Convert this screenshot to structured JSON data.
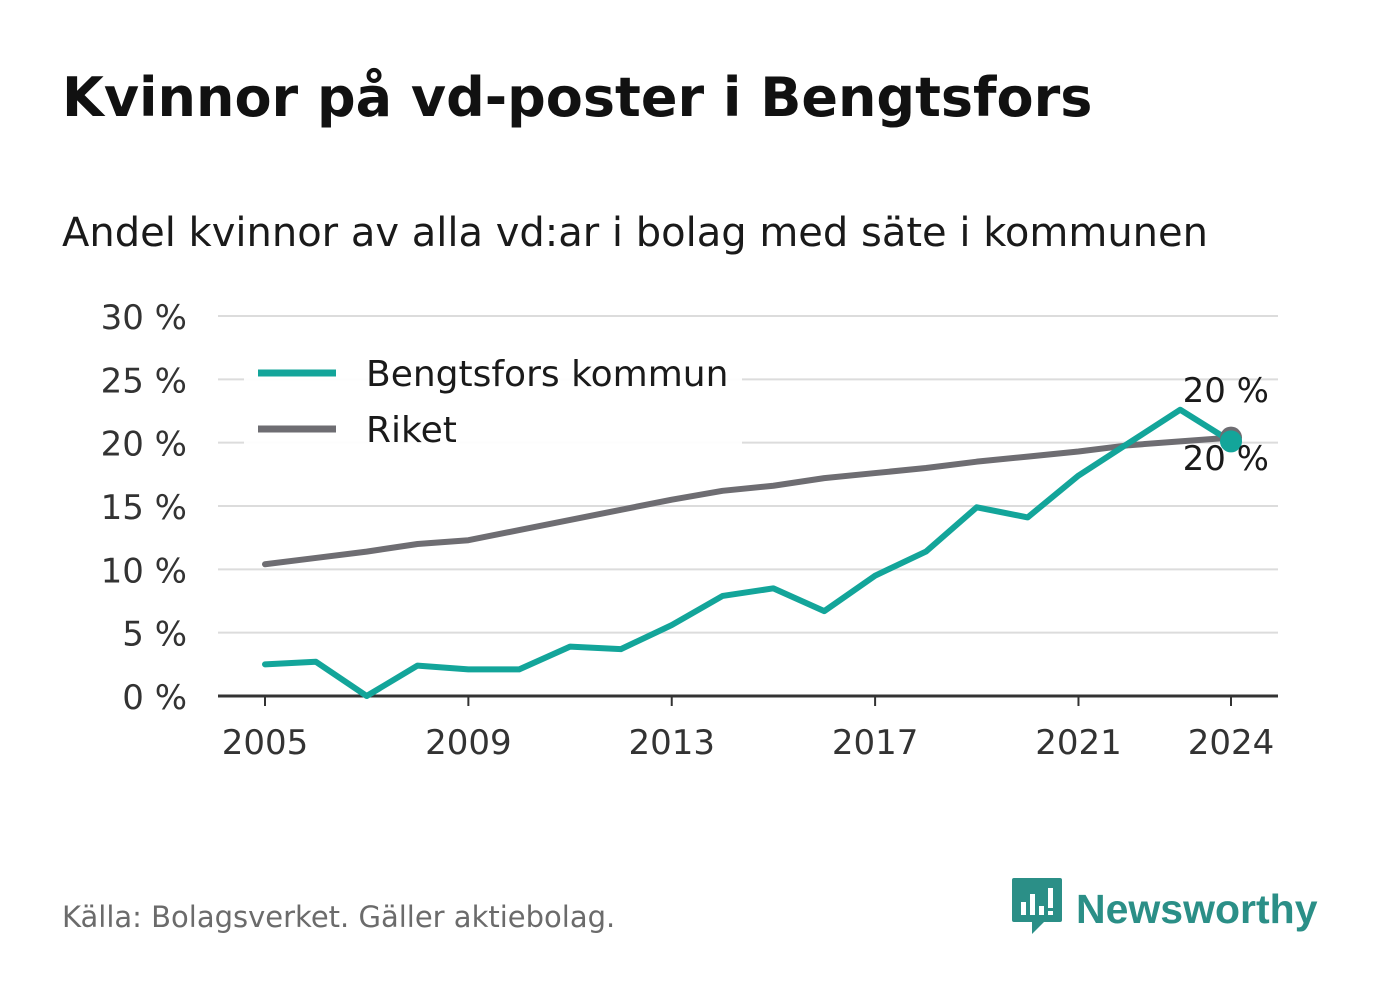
{
  "title": "Kvinnor på vd-poster i Bengtsfors",
  "subtitle": "Andel kvinnor av alla vd:ar i bolag med säte i kommunen",
  "source": "Källa: Bolagsverket. Gäller aktiebolag.",
  "brand": {
    "name": "Newsworthy",
    "icon": "newsworthy-logo-icon",
    "color": "#2b8f87"
  },
  "chart_data": {
    "type": "line",
    "title": "Kvinnor på vd-poster i Bengtsfors",
    "subtitle": "Andel kvinnor av alla vd:ar i bolag med säte i kommunen",
    "xlabel": "",
    "ylabel": "",
    "x": [
      2005,
      2006,
      2007,
      2008,
      2009,
      2010,
      2011,
      2012,
      2013,
      2014,
      2015,
      2016,
      2017,
      2018,
      2019,
      2020,
      2021,
      2022,
      2023,
      2024
    ],
    "x_ticks": [
      2005,
      2009,
      2013,
      2017,
      2021,
      2024
    ],
    "x_tick_labels": [
      "2005",
      "2009",
      "2013",
      "2017",
      "2021",
      "2024"
    ],
    "xlim": [
      2005,
      2024
    ],
    "ylim": [
      0,
      30
    ],
    "y_ticks": [
      0,
      5,
      10,
      15,
      20,
      25,
      30
    ],
    "y_tick_labels": [
      "0 %",
      "5 %",
      "10 %",
      "15 %",
      "20 %",
      "25 %",
      "30 %"
    ],
    "grid": true,
    "legend_position": "top-left",
    "series": [
      {
        "name": "Bengtsfors kommun",
        "color": "#13a59a",
        "values": [
          2.5,
          2.7,
          0.0,
          2.4,
          2.1,
          2.1,
          3.9,
          3.7,
          5.6,
          7.9,
          8.5,
          6.7,
          9.5,
          11.4,
          14.9,
          14.1,
          17.4,
          20.0,
          22.6,
          20.1
        ],
        "end_label": "20 %"
      },
      {
        "name": "Riket",
        "color": "#6e6d72",
        "values": [
          10.4,
          10.9,
          11.4,
          12.0,
          12.3,
          13.1,
          13.9,
          14.7,
          15.5,
          16.2,
          16.6,
          17.2,
          17.6,
          18.0,
          18.5,
          18.9,
          19.3,
          19.8,
          20.1,
          20.4
        ],
        "end_label": "20 %"
      }
    ]
  }
}
